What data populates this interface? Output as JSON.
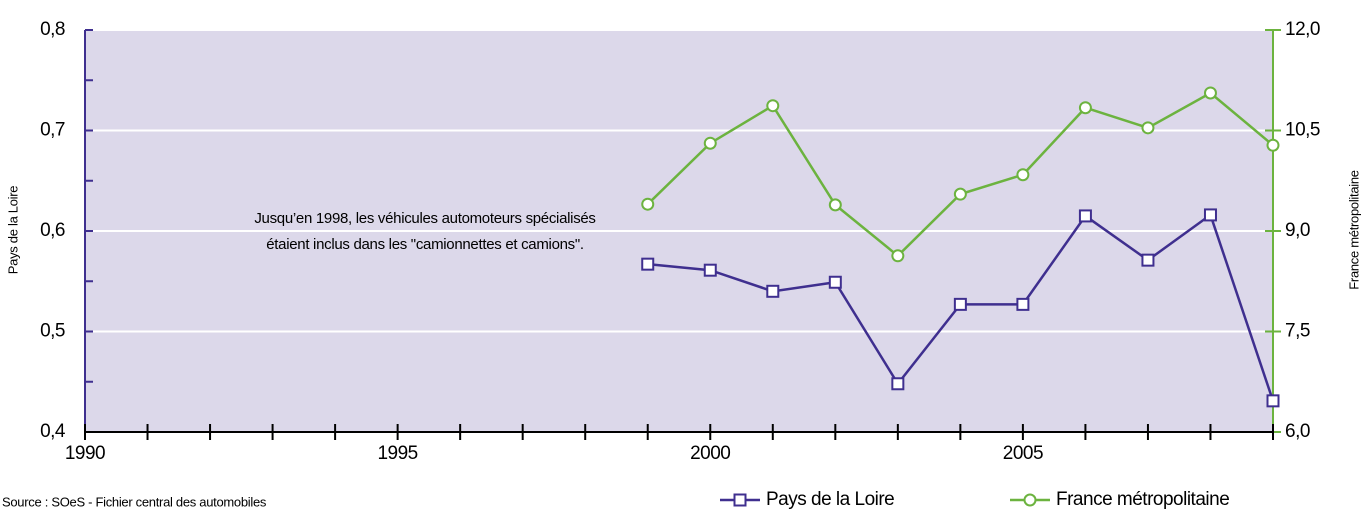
{
  "chart_data": {
    "type": "line",
    "x": [
      1999,
      2000,
      2001,
      2002,
      2003,
      2004,
      2005,
      2006,
      2007,
      2008,
      2009
    ],
    "series": [
      {
        "name": "Pays de la Loire",
        "color": "#3f2f8f",
        "marker": "square",
        "values": [
          0.567,
          0.561,
          0.54,
          0.549,
          0.448,
          0.527,
          0.527,
          0.615,
          0.571,
          0.616,
          0.431
        ]
      },
      {
        "name": "France métropolitaine",
        "color": "#6cb33f",
        "marker": "circle",
        "axis": "y2",
        "values": [
          9.4,
          10.31,
          10.87,
          9.39,
          8.63,
          9.55,
          9.84,
          10.84,
          10.54,
          11.06,
          10.28
        ]
      }
    ],
    "xlim": [
      1990,
      2009
    ],
    "xticks": [
      1990,
      1995,
      2000,
      2005
    ],
    "xminorticks": [
      1990,
      1991,
      1992,
      1993,
      1994,
      1995,
      1996,
      1997,
      1998,
      1999,
      2000,
      2001,
      2002,
      2003,
      2004,
      2005,
      2006,
      2007,
      2008,
      2009
    ],
    "ylim": [
      0.4,
      0.8
    ],
    "yticks": [
      {
        "value": 0.4,
        "label": "0,4"
      },
      {
        "value": 0.5,
        "label": "0,5"
      },
      {
        "value": 0.6,
        "label": "0,6"
      },
      {
        "value": 0.7,
        "label": "0,7"
      },
      {
        "value": 0.8,
        "label": "0,8"
      }
    ],
    "yminorticks": [
      0.45,
      0.55,
      0.65,
      0.75
    ],
    "y2lim": [
      6,
      12
    ],
    "y2ticks": [
      {
        "value": 6,
        "label": "6,0"
      },
      {
        "value": 7.5,
        "label": "7,5"
      },
      {
        "value": 9,
        "label": "9,0"
      },
      {
        "value": 10.5,
        "label": "10,5"
      },
      {
        "value": 12,
        "label": "12,0"
      }
    ],
    "ylabel": "Pays de la Loire",
    "y2label": "France métropolitaine",
    "annotation": [
      "Jusqu’en 1998, les véhicules automoteurs spécialisés",
      "étaient inclus dans les \"camionnettes et camions\"."
    ],
    "source": "Source : SOeS - Fichier central des automobiles",
    "grid": true,
    "background": "#dcd8ea"
  }
}
